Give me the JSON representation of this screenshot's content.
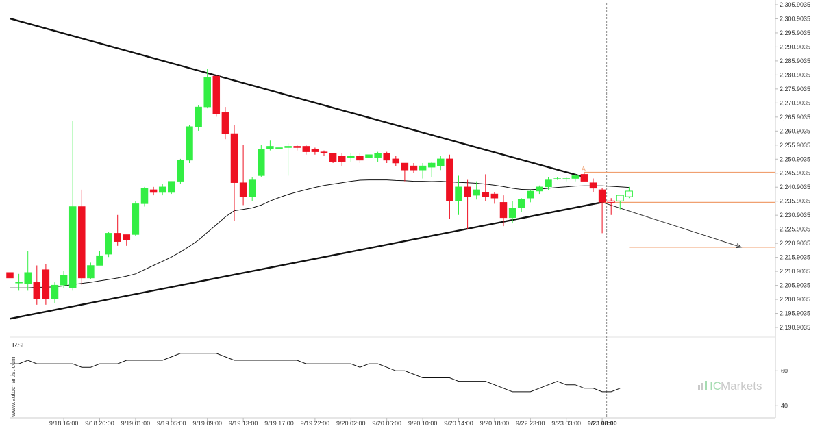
{
  "chart_data": [
    {
      "type": "candlestick",
      "title": "",
      "xlabel": "",
      "ylabel": "",
      "y_ticks": [
        "2,305.9035",
        "2,300.9035",
        "2,295.9035",
        "2,290.9035",
        "2,285.9035",
        "2,280.9035",
        "2,275.9035",
        "2,270.9035",
        "2,265.9035",
        "2,260.9035",
        "2,255.9035",
        "2,250.9035",
        "2,245.9035",
        "2,240.9035",
        "2,235.9035",
        "2,230.9035",
        "2,225.9035",
        "2,220.9035",
        "2,215.9035",
        "2,210.9035",
        "2,205.9035",
        "2,200.9035",
        "2,195.9035",
        "2,190.9035"
      ],
      "ylim": [
        2188.0,
        2307.0
      ],
      "x_ticks": [
        "9/18 16:00",
        "9/18 20:00",
        "9/19 01:00",
        "9/19 05:00",
        "9/19 09:00",
        "9/19 13:00",
        "9/19 17:00",
        "9/19 22:00",
        "9/20 02:00",
        "9/20 06:00",
        "9/20 10:00",
        "9/20 14:00",
        "9/20 18:00",
        "9/22 23:00",
        "9/23 03:00",
        "9/23 08:00"
      ],
      "x_tick_bar_index": [
        6,
        10,
        14,
        18,
        22,
        26,
        30,
        34,
        38,
        42,
        46,
        50,
        54,
        58,
        62,
        66
      ],
      "candles": [
        {
          "o": 2210.5,
          "h": 2211.0,
          "l": 2207.5,
          "c": 2208.5
        },
        {
          "o": 2207.0,
          "h": 2210.0,
          "l": 2204.0,
          "c": 2207.0
        },
        {
          "o": 2206.5,
          "h": 2218.0,
          "l": 2204.0,
          "c": 2210.5
        },
        {
          "o": 2207.0,
          "h": 2213.0,
          "l": 2199.0,
          "c": 2201.0
        },
        {
          "o": 2211.5,
          "h": 2213.5,
          "l": 2199.0,
          "c": 2201.0
        },
        {
          "o": 2201.0,
          "h": 2207.0,
          "l": 2199.5,
          "c": 2206.0
        },
        {
          "o": 2206.0,
          "h": 2211.0,
          "l": 2205.0,
          "c": 2209.5
        },
        {
          "o": 2205.0,
          "h": 2264.5,
          "l": 2204.0,
          "c": 2234.0
        },
        {
          "o": 2234.0,
          "h": 2240.0,
          "l": 2206.0,
          "c": 2208.5
        },
        {
          "o": 2208.5,
          "h": 2214.0,
          "l": 2208.0,
          "c": 2213.0
        },
        {
          "o": 2213.0,
          "h": 2218.0,
          "l": 2213.0,
          "c": 2216.5
        },
        {
          "o": 2217.0,
          "h": 2225.0,
          "l": 2216.0,
          "c": 2224.5
        },
        {
          "o": 2224.5,
          "h": 2231.0,
          "l": 2220.0,
          "c": 2221.5
        },
        {
          "o": 2224.0,
          "h": 2224.0,
          "l": 2220.0,
          "c": 2222.0
        },
        {
          "o": 2224.0,
          "h": 2236.0,
          "l": 2223.5,
          "c": 2235.0
        },
        {
          "o": 2235.0,
          "h": 2241.0,
          "l": 2234.0,
          "c": 2240.5
        },
        {
          "o": 2240.0,
          "h": 2241.0,
          "l": 2238.0,
          "c": 2239.0
        },
        {
          "o": 2239.0,
          "h": 2242.0,
          "l": 2238.0,
          "c": 2241.0
        },
        {
          "o": 2239.0,
          "h": 2243.0,
          "l": 2238.5,
          "c": 2243.0
        },
        {
          "o": 2243.0,
          "h": 2251.0,
          "l": 2242.0,
          "c": 2250.5
        },
        {
          "o": 2250.5,
          "h": 2263.0,
          "l": 2249.5,
          "c": 2262.5
        },
        {
          "o": 2262.5,
          "h": 2270.0,
          "l": 2261.0,
          "c": 2269.5
        },
        {
          "o": 2269.5,
          "h": 2283.0,
          "l": 2269.0,
          "c": 2280.0
        },
        {
          "o": 2280.5,
          "h": 2281.0,
          "l": 2266.0,
          "c": 2267.0
        },
        {
          "o": 2267.5,
          "h": 2269.5,
          "l": 2258.0,
          "c": 2260.0
        },
        {
          "o": 2260.0,
          "h": 2263.0,
          "l": 2229.0,
          "c": 2242.5
        },
        {
          "o": 2242.5,
          "h": 2256.0,
          "l": 2234.5,
          "c": 2237.5
        },
        {
          "o": 2237.5,
          "h": 2244.5,
          "l": 2236.0,
          "c": 2243.5
        },
        {
          "o": 2245.0,
          "h": 2256.0,
          "l": 2244.5,
          "c": 2254.5
        },
        {
          "o": 2254.5,
          "h": 2257.5,
          "l": 2254.0,
          "c": 2255.5
        },
        {
          "o": 2255.0,
          "h": 2256.0,
          "l": 2244.5,
          "c": 2255.0
        },
        {
          "o": 2255.0,
          "h": 2256.5,
          "l": 2245.0,
          "c": 2255.5
        },
        {
          "o": 2255.5,
          "h": 2256.0,
          "l": 2254.0,
          "c": 2255.0
        },
        {
          "o": 2255.5,
          "h": 2256.0,
          "l": 2252.5,
          "c": 2253.5
        },
        {
          "o": 2254.5,
          "h": 2255.0,
          "l": 2252.5,
          "c": 2253.5
        },
        {
          "o": 2253.5,
          "h": 2254.0,
          "l": 2252.0,
          "c": 2253.0
        },
        {
          "o": 2253.0,
          "h": 2253.0,
          "l": 2249.5,
          "c": 2250.0
        },
        {
          "o": 2252.0,
          "h": 2253.0,
          "l": 2248.5,
          "c": 2250.0
        },
        {
          "o": 2251.5,
          "h": 2253.0,
          "l": 2250.0,
          "c": 2252.0
        },
        {
          "o": 2252.0,
          "h": 2253.0,
          "l": 2249.5,
          "c": 2250.5
        },
        {
          "o": 2251.5,
          "h": 2253.0,
          "l": 2250.0,
          "c": 2252.5
        },
        {
          "o": 2251.5,
          "h": 2253.5,
          "l": 2250.0,
          "c": 2253.0
        },
        {
          "o": 2253.0,
          "h": 2253.5,
          "l": 2249.5,
          "c": 2250.5
        },
        {
          "o": 2251.0,
          "h": 2252.0,
          "l": 2248.5,
          "c": 2249.5
        },
        {
          "o": 2249.5,
          "h": 2249.5,
          "l": 2243.0,
          "c": 2247.0
        },
        {
          "o": 2248.5,
          "h": 2249.5,
          "l": 2246.0,
          "c": 2247.0
        },
        {
          "o": 2247.0,
          "h": 2249.5,
          "l": 2244.0,
          "c": 2248.5
        },
        {
          "o": 2248.0,
          "h": 2250.0,
          "l": 2244.5,
          "c": 2249.5
        },
        {
          "o": 2248.5,
          "h": 2252.0,
          "l": 2247.0,
          "c": 2251.0
        },
        {
          "o": 2251.0,
          "h": 2252.5,
          "l": 2229.5,
          "c": 2236.0
        },
        {
          "o": 2236.0,
          "h": 2245.0,
          "l": 2231.0,
          "c": 2241.0
        },
        {
          "o": 2241.0,
          "h": 2243.5,
          "l": 2226.0,
          "c": 2237.5
        },
        {
          "o": 2238.0,
          "h": 2243.0,
          "l": 2236.5,
          "c": 2240.0
        },
        {
          "o": 2239.0,
          "h": 2245.5,
          "l": 2236.0,
          "c": 2237.5
        },
        {
          "o": 2238.5,
          "h": 2239.0,
          "l": 2235.0,
          "c": 2237.0
        },
        {
          "o": 2235.5,
          "h": 2238.0,
          "l": 2227.0,
          "c": 2230.0
        },
        {
          "o": 2230.0,
          "h": 2236.0,
          "l": 2228.0,
          "c": 2233.5
        },
        {
          "o": 2233.5,
          "h": 2237.0,
          "l": 2232.0,
          "c": 2236.5
        },
        {
          "o": 2237.0,
          "h": 2240.0,
          "l": 2235.5,
          "c": 2239.5
        },
        {
          "o": 2239.5,
          "h": 2241.5,
          "l": 2238.5,
          "c": 2241.0
        },
        {
          "o": 2241.0,
          "h": 2244.5,
          "l": 2240.0,
          "c": 2243.5
        },
        {
          "o": 2244.0,
          "h": 2244.5,
          "l": 2243.5,
          "c": 2244.0
        },
        {
          "o": 2244.0,
          "h": 2244.5,
          "l": 2243.0,
          "c": 2244.0
        },
        {
          "o": 2244.0,
          "h": 2246.0,
          "l": 2243.0,
          "c": 2245.0
        },
        {
          "o": 2245.5,
          "h": 2246.0,
          "l": 2243.0,
          "c": 2243.0
        },
        {
          "o": 2242.5,
          "h": 2244.0,
          "l": 2239.0,
          "c": 2240.5
        },
        {
          "o": 2240.0,
          "h": 2240.5,
          "l": 2224.5,
          "c": 2235.5
        },
        {
          "o": 2236.0,
          "h": 2237.0,
          "l": 2231.0,
          "c": 2235.5
        },
        {
          "o": 2236.0,
          "h": 2238.0,
          "l": 2233.0,
          "c": 2238.0
        },
        {
          "o": 2237.5,
          "h": 2241.0,
          "l": 2237.0,
          "c": 2239.5
        }
      ],
      "hollow_from_index": 67,
      "moving_average": [
        2205.0,
        2205.0,
        2205.0,
        2205.2,
        2205.2,
        2205.4,
        2205.7,
        2206.2,
        2206.6,
        2207.0,
        2207.5,
        2208.0,
        2208.5,
        2209.2,
        2210.0,
        2211.5,
        2213.0,
        2214.5,
        2216.0,
        2217.8,
        2219.8,
        2222.0,
        2224.8,
        2227.5,
        2230.3,
        2232.5,
        2233.0,
        2233.5,
        2234.5,
        2236.0,
        2237.2,
        2238.3,
        2239.2,
        2240.0,
        2240.8,
        2241.5,
        2242.0,
        2242.5,
        2243.0,
        2243.4,
        2243.5,
        2243.5,
        2243.5,
        2243.3,
        2243.2,
        2243.0,
        2243.0,
        2242.9,
        2243.0,
        2242.8,
        2242.6,
        2242.5,
        2242.3,
        2242.0,
        2241.6,
        2241.1,
        2240.5,
        2240.1,
        2240.0,
        2240.2,
        2240.5,
        2240.8,
        2241.0,
        2241.3,
        2241.4,
        2241.4,
        2241.4,
        2241.2,
        2241.0,
        2240.8
      ],
      "trendlines": [
        {
          "name": "upper",
          "from": {
            "bar": 0,
            "price": 2301.0
          },
          "to": {
            "bar": 64,
            "price": 2244.5
          }
        },
        {
          "name": "lower",
          "from": {
            "bar": 0,
            "price": 2194.0
          },
          "to": {
            "bar": 66,
            "price": 2235.5
          }
        }
      ],
      "levels": [
        {
          "price": 2246.2,
          "from_bar": 64,
          "label": "A"
        },
        {
          "price": 2235.5,
          "from_bar": 66,
          "label": ""
        },
        {
          "price": 2219.5,
          "from_bar": 69,
          "label": ""
        }
      ],
      "projection": {
        "from": {
          "bar": 66,
          "price": 2235.5
        },
        "to": {
          "bar": 81.5,
          "price": 2219.5
        }
      },
      "current_time_bar": 66.5,
      "colors": {
        "bull": "#33ee44",
        "bear": "#ee1122",
        "level": "#f0a070",
        "line": "#111111"
      }
    },
    {
      "type": "line",
      "title": "RSI",
      "xlabel": "",
      "ylabel": "",
      "y_ticks": [
        "60",
        "40"
      ],
      "ylim": [
        35,
        77
      ],
      "values": [
        64,
        64,
        66,
        64,
        64,
        64,
        64,
        64,
        62,
        62,
        64,
        64,
        64,
        66,
        66,
        66,
        66,
        66,
        68,
        70,
        70,
        70,
        70,
        70,
        68,
        66,
        66,
        66,
        66,
        66,
        66,
        66,
        66,
        64,
        64,
        64,
        64,
        64,
        64,
        62,
        64,
        64,
        62,
        60,
        60,
        58,
        56,
        56,
        56,
        56,
        54,
        54,
        54,
        54,
        52,
        50,
        48,
        48,
        48,
        50,
        52,
        54,
        52,
        52,
        50,
        50,
        48,
        48,
        50
      ]
    }
  ],
  "watermark": {
    "site": "www.autochartist.com",
    "brand_ic": "IC",
    "brand_rest": "Markets"
  }
}
